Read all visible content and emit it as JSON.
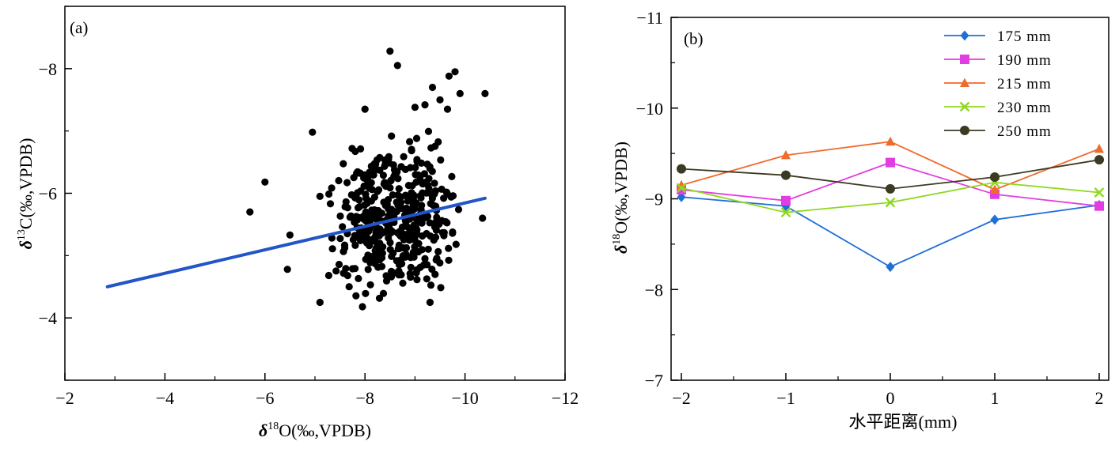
{
  "chart_data": [
    {
      "id": "a",
      "type": "scatter",
      "panel_label": "(a)",
      "xlabel_sym": "δ",
      "xlabel_sup": "18",
      "xlabel_rest": "O(‰,VPDB)",
      "ylabel_sym": "δ",
      "ylabel_sup": "13",
      "ylabel_rest": "C(‰,VPDB)",
      "xlim": [
        -2,
        -12
      ],
      "ylim": [
        -3,
        -9
      ],
      "xticks": [
        -2,
        -4,
        -6,
        -8,
        -10,
        -12
      ],
      "xtick_labels": [
        "−2",
        "−4",
        "−6",
        "−8",
        "−10",
        "−12"
      ],
      "yticks": [
        -4,
        -6,
        -8
      ],
      "ytick_labels": [
        "−4",
        "−6",
        "−8"
      ],
      "trend_color": "#2155c8",
      "point_color": "#000000",
      "trendline": {
        "x": [
          -2.85,
          -10.4
        ],
        "y": [
          -4.5,
          -5.92
        ]
      },
      "outlier_points": [
        [
          -8.5,
          -8.28
        ],
        [
          -8.65,
          -8.05
        ],
        [
          -9.8,
          -7.95
        ],
        [
          -9.68,
          -7.88
        ],
        [
          -9.35,
          -7.7
        ],
        [
          -9.9,
          -7.6
        ],
        [
          -10.4,
          -7.6
        ],
        [
          -9.5,
          -7.5
        ],
        [
          -9.2,
          -7.42
        ],
        [
          -9.65,
          -7.35
        ],
        [
          -9.0,
          -7.38
        ],
        [
          -8.0,
          -7.35
        ],
        [
          -5.7,
          -5.7
        ],
        [
          -6.0,
          -6.18
        ],
        [
          -6.5,
          -5.33
        ],
        [
          -6.45,
          -4.78
        ],
        [
          -7.1,
          -4.25
        ],
        [
          -7.95,
          -4.18
        ],
        [
          -9.3,
          -4.25
        ],
        [
          -10.35,
          -5.6
        ],
        [
          -6.95,
          -6.98
        ],
        [
          -7.1,
          -5.95
        ]
      ],
      "cluster": {
        "n": 420,
        "x_center": -8.55,
        "x_sd": 0.62,
        "y_center": -5.55,
        "y_sd": 0.62,
        "x_min": -7.1,
        "x_max": -9.9,
        "y_min": -4.3,
        "y_max": -7.0
      }
    },
    {
      "id": "b",
      "type": "line",
      "panel_label": "(b)",
      "xlabel": "水平距离(mm)",
      "ylabel_sym": "δ",
      "ylabel_sup": "18",
      "ylabel_rest": "O(‰,VPDB)",
      "x": [
        -2,
        -1,
        0,
        1,
        2
      ],
      "xtick_labels": [
        "−2",
        "−1",
        "0",
        "1",
        "2"
      ],
      "ylim": [
        -7,
        -11
      ],
      "yticks": [
        -7,
        -8,
        -9,
        -10,
        -11
      ],
      "ytick_labels": [
        "−7",
        "−8",
        "−9",
        "−10",
        "−11"
      ],
      "series": [
        {
          "name": "175 mm",
          "color": "#1f6fd6",
          "marker": "diamond",
          "values": [
            -9.02,
            -8.92,
            -8.25,
            -8.77,
            -8.93
          ]
        },
        {
          "name": "190 mm",
          "color": "#e23de2",
          "marker": "square",
          "values": [
            -9.1,
            -8.98,
            -9.4,
            -9.05,
            -8.92
          ]
        },
        {
          "name": "215 mm",
          "color": "#f06a2c",
          "marker": "triangle",
          "values": [
            -9.15,
            -9.48,
            -9.63,
            -9.1,
            -9.55
          ]
        },
        {
          "name": "230 mm",
          "color": "#8fd81e",
          "marker": "x",
          "values": [
            -9.12,
            -8.85,
            -8.96,
            -9.18,
            -9.07
          ]
        },
        {
          "name": "250 mm",
          "color": "#3c3a22",
          "marker": "circle",
          "values": [
            -9.33,
            -9.26,
            -9.11,
            -9.24,
            -9.43
          ]
        }
      ]
    }
  ]
}
